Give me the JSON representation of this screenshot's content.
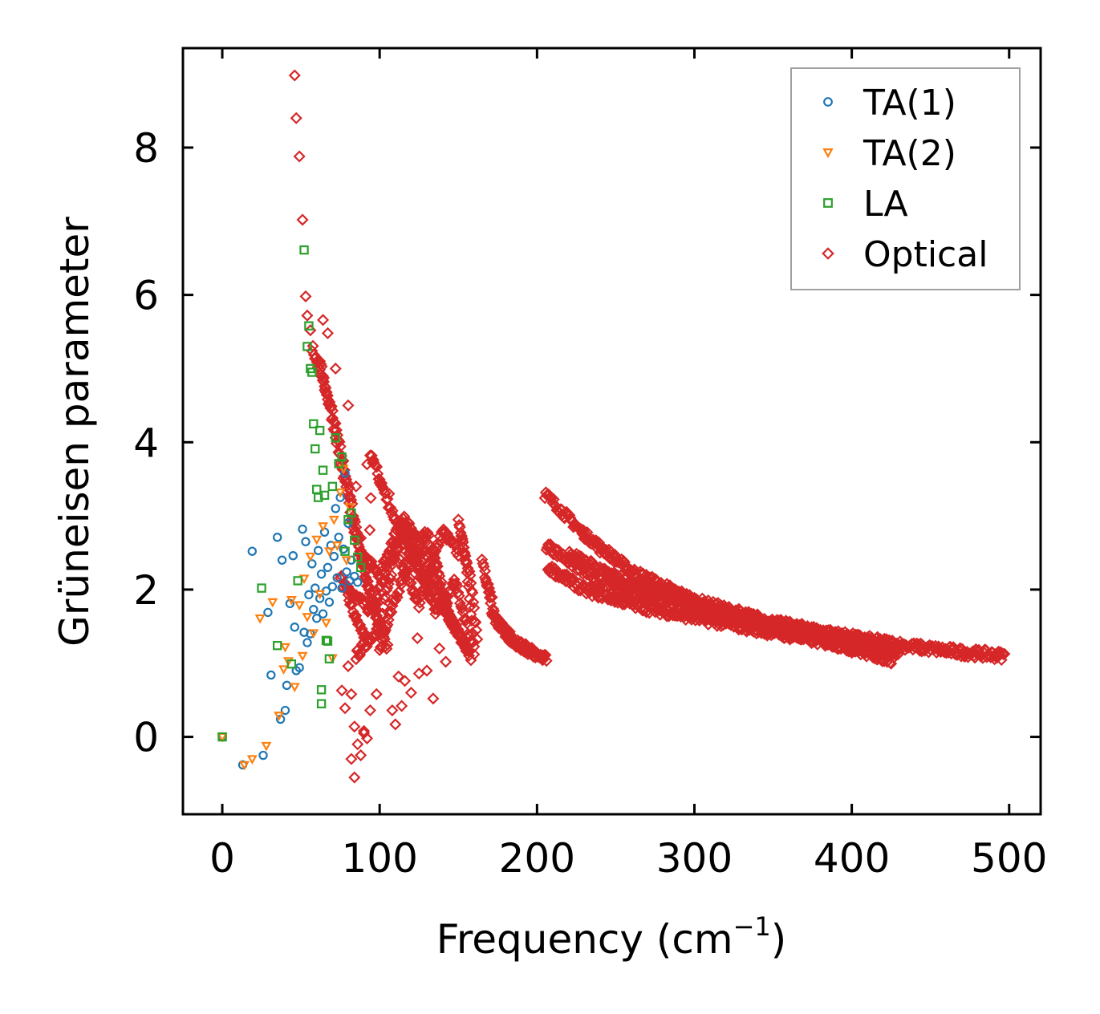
{
  "chart_data": {
    "type": "scatter",
    "title": "",
    "xlabel": "Frequency (cm",
    "xlabel_sup": "−1",
    "xlabel_end": ")",
    "ylabel": "Grüneisen parameter",
    "xlim": [
      -25,
      520
    ],
    "ylim": [
      -1.05,
      9.35
    ],
    "xticks": [
      0,
      100,
      200,
      300,
      400,
      500
    ],
    "yticks": [
      0,
      2,
      4,
      6,
      8
    ],
    "xtick_labels": [
      "0",
      "100",
      "200",
      "300",
      "400",
      "500"
    ],
    "ytick_labels": [
      "0",
      "2",
      "4",
      "6",
      "8"
    ],
    "grid": false,
    "legend_position": "top-right",
    "series": [
      {
        "name": "TA(1)",
        "marker": "circle",
        "color": "#1f77b4",
        "points": [
          [
            0,
            0
          ],
          [
            13,
            -0.38
          ],
          [
            19,
            2.52
          ],
          [
            26,
            -0.25
          ],
          [
            29,
            1.69
          ],
          [
            31,
            0.84
          ],
          [
            35,
            2.71
          ],
          [
            37,
            0.24
          ],
          [
            38,
            2.4
          ],
          [
            40,
            0.36
          ],
          [
            41,
            0.7
          ],
          [
            43,
            1.81
          ],
          [
            45,
            2.46
          ],
          [
            46,
            1.49
          ],
          [
            47,
            0.9
          ],
          [
            49,
            0.94
          ],
          [
            51,
            2.82
          ],
          [
            52,
            1.42
          ],
          [
            53,
            2.65
          ],
          [
            54,
            1.28
          ],
          [
            55,
            1.93
          ],
          [
            56,
            1.4
          ],
          [
            57,
            2.35
          ],
          [
            58,
            1.73
          ],
          [
            59,
            2.02
          ],
          [
            60,
            1.61
          ],
          [
            61,
            2.53
          ],
          [
            62,
            1.88
          ],
          [
            63,
            2.21
          ],
          [
            64,
            1.67
          ],
          [
            65,
            2.78
          ],
          [
            66,
            1.98
          ],
          [
            67,
            2.3
          ],
          [
            68,
            1.83
          ],
          [
            69,
            2.6
          ],
          [
            70,
            2.04
          ],
          [
            71,
            2.45
          ],
          [
            72,
            3.1
          ],
          [
            73,
            2.16
          ],
          [
            74,
            2.71
          ],
          [
            75,
            3.25
          ],
          [
            76,
            2.02
          ],
          [
            77,
            2.55
          ],
          [
            78,
            3.58
          ],
          [
            79,
            2.24
          ],
          [
            80,
            2.9
          ],
          [
            81,
            2.12
          ],
          [
            82,
            2.4
          ],
          [
            84,
            2.18
          ],
          [
            86,
            2.1
          ]
        ]
      },
      {
        "name": "TA(2)",
        "marker": "triangle-down",
        "color": "#ff7f0e",
        "points": [
          [
            0,
            0
          ],
          [
            14,
            -0.38
          ],
          [
            19,
            -0.3
          ],
          [
            24,
            1.61
          ],
          [
            28,
            -0.12
          ],
          [
            32,
            1.83
          ],
          [
            36,
            0.29
          ],
          [
            39,
            0.92
          ],
          [
            40,
            1.22
          ],
          [
            42,
            1.03
          ],
          [
            44,
            1.86
          ],
          [
            46,
            0.68
          ],
          [
            49,
            1.79
          ],
          [
            51,
            1.1
          ],
          [
            52,
            2.15
          ],
          [
            54,
            1.63
          ],
          [
            56,
            2.45
          ],
          [
            58,
            1.41
          ],
          [
            60,
            2.68
          ],
          [
            62,
            1.94
          ],
          [
            64,
            2.86
          ],
          [
            66,
            1.55
          ],
          [
            68,
            2.52
          ],
          [
            70,
            1.07
          ],
          [
            71,
            2.95
          ],
          [
            73,
            2.6
          ],
          [
            75,
            3.32
          ],
          [
            77,
            3.64
          ],
          [
            79,
            2.4
          ],
          [
            81,
            3.12
          ]
        ]
      },
      {
        "name": "LA",
        "marker": "square",
        "color": "#2ca02c",
        "points": [
          [
            0,
            0
          ],
          [
            25,
            2.02
          ],
          [
            35,
            1.24
          ],
          [
            44,
            0.99
          ],
          [
            48,
            2.12
          ],
          [
            52,
            6.61
          ],
          [
            54,
            5.3
          ],
          [
            55,
            5.58
          ],
          [
            56,
            5.0
          ],
          [
            57,
            4.95
          ],
          [
            58,
            4.25
          ],
          [
            59,
            3.91
          ],
          [
            60,
            3.36
          ],
          [
            61,
            3.25
          ],
          [
            62,
            4.16
          ],
          [
            63,
            0.64
          ],
          [
            63,
            0.45
          ],
          [
            64,
            3.62
          ],
          [
            65,
            3.28
          ],
          [
            66,
            1.31
          ],
          [
            67,
            1.3
          ],
          [
            68,
            1.06
          ],
          [
            70,
            3.4
          ],
          [
            72,
            4.06
          ],
          [
            74,
            3.71
          ],
          [
            76,
            3.8
          ],
          [
            78,
            2.52
          ],
          [
            80,
            2.95
          ],
          [
            82,
            3.04
          ],
          [
            84,
            2.67
          ],
          [
            86,
            2.44
          ],
          [
            88,
            2.3
          ]
        ]
      }
    ],
    "optical_series": {
      "name": "Optical",
      "marker": "diamond",
      "color": "#d62728",
      "scattered_points": [
        [
          46,
          8.98
        ],
        [
          47,
          8.4
        ],
        [
          49,
          7.88
        ],
        [
          51,
          7.02
        ],
        [
          53,
          5.98
        ],
        [
          54,
          5.72
        ],
        [
          56,
          5.52
        ],
        [
          64,
          5.66
        ],
        [
          67,
          5.48
        ],
        [
          72,
          5.0
        ],
        [
          80,
          4.5
        ],
        [
          85,
          3.4
        ],
        [
          88,
          2.7
        ],
        [
          90,
          0.05
        ],
        [
          92,
          3.7
        ],
        [
          94,
          3.82
        ],
        [
          96,
          3.76
        ],
        [
          100,
          3.45
        ],
        [
          106,
          3.3
        ],
        [
          110,
          0.17
        ],
        [
          112,
          0.82
        ],
        [
          114,
          0.42
        ],
        [
          120,
          0.6
        ],
        [
          125,
          0.86
        ],
        [
          130,
          0.9
        ],
        [
          134,
          0.52
        ],
        [
          138,
          1.2
        ],
        [
          76,
          0.63
        ],
        [
          78,
          0.39
        ],
        [
          80,
          0.96
        ],
        [
          82,
          0.58
        ],
        [
          84,
          0.14
        ],
        [
          86,
          -0.1
        ],
        [
          88,
          -0.25
        ],
        [
          90,
          0.08
        ],
        [
          92,
          -0.02
        ],
        [
          84,
          -0.55
        ],
        [
          82,
          -0.3
        ],
        [
          108,
          0.36
        ],
        [
          116,
          0.76
        ],
        [
          124,
          1.34
        ],
        [
          142,
          1.02
        ],
        [
          160,
          1.12
        ],
        [
          94,
          0.36
        ],
        [
          98,
          0.58
        ]
      ],
      "bands": [
        {
          "x": [
            57,
            70,
            80,
            90,
            100
          ],
          "y": [
            5.3,
            4.4,
            3.4,
            2.3,
            1.4
          ]
        },
        {
          "x": [
            62,
            72,
            82,
            92,
            105
          ],
          "y": [
            5.1,
            4.1,
            3.0,
            2.1,
            1.2
          ]
        },
        {
          "x": [
            75,
            85,
            92,
            95,
            105,
            115,
            128,
            140,
            150
          ],
          "y": [
            2.2,
            1.6,
            1.3,
            3.8,
            3.2,
            2.7,
            2.2,
            1.8,
            1.4
          ]
        },
        {
          "x": [
            80,
            95,
            110,
            125,
            140,
            150
          ],
          "y": [
            2.0,
            1.7,
            2.6,
            1.8,
            2.8,
            2.5
          ]
        },
        {
          "x": [
            85,
            100,
            115,
            130,
            145,
            155
          ],
          "y": [
            1.1,
            1.5,
            3.0,
            2.4,
            1.6,
            1.2
          ]
        },
        {
          "x": [
            88,
            100,
            112,
            124,
            136,
            148,
            158
          ],
          "y": [
            2.5,
            2.2,
            2.9,
            2.3,
            1.7,
            2.1,
            1.3
          ]
        },
        {
          "x": [
            100,
            115,
            130,
            145,
            158
          ],
          "y": [
            1.2,
            2.2,
            2.8,
            1.6,
            1.1
          ]
        },
        {
          "x": [
            150,
            155,
            160
          ],
          "y": [
            2.9,
            2.4,
            1.2
          ]
        },
        {
          "x": [
            152,
            158,
            162
          ],
          "y": [
            2.7,
            2.1,
            1.3
          ]
        },
        {
          "x": [
            165,
            172,
            182,
            192,
            200,
            206
          ],
          "y": [
            2.4,
            1.65,
            1.35,
            1.2,
            1.12,
            1.09
          ]
        },
        {
          "x": [
            167,
            175,
            186,
            196,
            204
          ],
          "y": [
            2.2,
            1.55,
            1.3,
            1.16,
            1.1
          ]
        },
        {
          "x": [
            205,
            230,
            260,
            300,
            350,
            400,
            440,
            470,
            497
          ],
          "y": [
            3.3,
            2.75,
            2.25,
            1.85,
            1.55,
            1.35,
            1.22,
            1.15,
            1.1
          ]
        },
        {
          "x": [
            206,
            240,
            280,
            320,
            360,
            400,
            428
          ],
          "y": [
            2.6,
            2.1,
            1.85,
            1.62,
            1.42,
            1.27,
            1.12
          ]
        },
        {
          "x": [
            207,
            230,
            270,
            310,
            350,
            390,
            425
          ],
          "y": [
            2.3,
            2.0,
            1.75,
            1.58,
            1.42,
            1.26,
            1.05
          ]
        },
        {
          "x": [
            220,
            250,
            290,
            330,
            380,
            420,
            430
          ],
          "y": [
            2.5,
            2.15,
            1.88,
            1.62,
            1.42,
            1.22,
            1.15
          ]
        }
      ],
      "extra_points": [
        [
          230,
          2.74
        ],
        [
          240,
          2.5
        ],
        [
          248,
          2.46
        ],
        [
          252,
          2.3
        ],
        [
          262,
          2.18
        ],
        [
          270,
          2.1
        ],
        [
          278,
          2.02
        ],
        [
          285,
          1.92
        ],
        [
          295,
          1.88
        ],
        [
          310,
          1.78
        ],
        [
          320,
          1.68
        ],
        [
          335,
          1.62
        ],
        [
          345,
          1.55
        ],
        [
          360,
          1.5
        ],
        [
          375,
          1.46
        ],
        [
          390,
          1.42
        ],
        [
          405,
          1.35
        ],
        [
          420,
          1.28
        ],
        [
          430,
          1.2
        ],
        [
          445,
          1.18
        ],
        [
          460,
          1.14
        ],
        [
          480,
          1.12
        ],
        [
          492,
          1.1
        ]
      ]
    }
  },
  "legend": {
    "entries": [
      {
        "label": "TA(1)",
        "marker": "circle",
        "color": "#1f77b4"
      },
      {
        "label": "TA(2)",
        "marker": "triangle-down",
        "color": "#ff7f0e"
      },
      {
        "label": "LA",
        "marker": "square",
        "color": "#2ca02c"
      },
      {
        "label": "Optical",
        "marker": "diamond",
        "color": "#d62728"
      }
    ]
  }
}
